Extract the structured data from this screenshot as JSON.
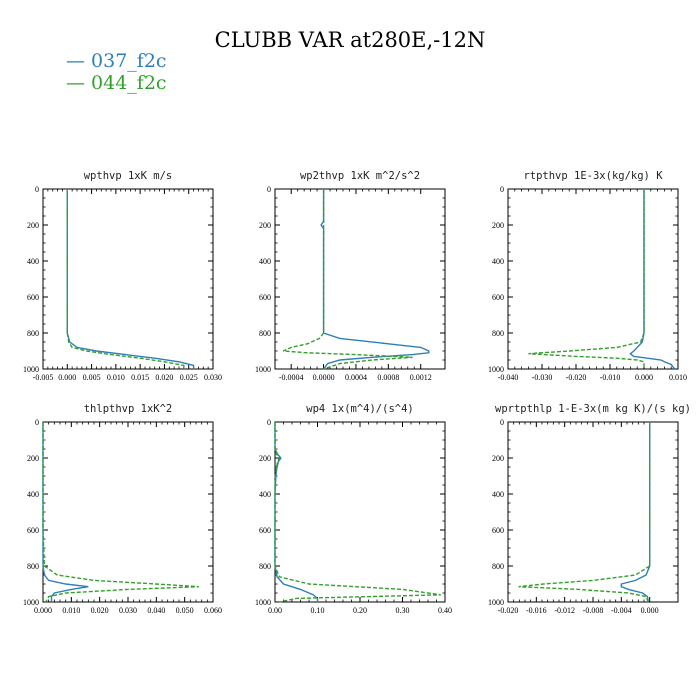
{
  "title": "CLUBB VAR at280E,-12N",
  "legend": [
    {
      "label": "— 037_f2c",
      "color": "#2d7fb8"
    },
    {
      "label": "— 044_f2c",
      "color": "#33a02c"
    }
  ],
  "chart_data": [
    {
      "type": "line",
      "title": "wpthvp  1xK m/s",
      "xlim": [
        -0.005,
        0.03
      ],
      "xticks": [
        "-0.005",
        "0.000",
        "0.005",
        "0.010",
        "0.015",
        "0.020",
        "0.025",
        "0.030"
      ],
      "ylim": [
        1000,
        0
      ],
      "yticks": [
        "0",
        "200",
        "400",
        "600",
        "800",
        "1000"
      ],
      "y": [
        0,
        200,
        400,
        600,
        800,
        850,
        880,
        900,
        920,
        940,
        960,
        980,
        1000
      ],
      "series": [
        {
          "name": "037_f2c",
          "x": [
            0,
            0,
            0,
            0,
            0,
            0.0005,
            0.002,
            0.006,
            0.012,
            0.018,
            0.023,
            0.026,
            0.026
          ]
        },
        {
          "name": "044_f2c",
          "x": [
            0,
            0,
            0,
            0,
            0,
            0.0003,
            0.001,
            0.004,
            0.009,
            0.015,
            0.02,
            0.024,
            0.024
          ]
        }
      ]
    },
    {
      "type": "line",
      "title": "wp2thvp  1xK m^2/s^2",
      "xlim": [
        -0.0006,
        0.0015
      ],
      "xticks": [
        "-0.0004",
        "0.0000",
        "0.0004",
        "0.0008",
        "0.0012"
      ],
      "ylim": [
        1000,
        0
      ],
      "yticks": [
        "0",
        "200",
        "400",
        "600",
        "800",
        "1000"
      ],
      "y": [
        0,
        180,
        200,
        220,
        400,
        600,
        800,
        830,
        860,
        880,
        900,
        910,
        920,
        935,
        950,
        970,
        1000
      ],
      "series": [
        {
          "name": "037_f2c",
          "x": [
            0,
            0,
            -3e-05,
            0,
            0,
            0,
            0,
            0.0002,
            0.0008,
            0.0012,
            0.0013,
            0.0013,
            0.0011,
            0.0006,
            0.0002,
            5e-05,
            0
          ]
        },
        {
          "name": "044_f2c",
          "x": [
            0,
            0,
            0,
            0,
            0,
            0,
            0,
            -5e-05,
            -0.0002,
            -0.0004,
            -0.0005,
            -0.0002,
            0.0004,
            0.0011,
            0.0006,
            0.0002,
            0
          ]
        }
      ]
    },
    {
      "type": "line",
      "title": "rtpthvp  1E-3x(kg/kg) K",
      "xlim": [
        -0.04,
        0.01
      ],
      "xticks": [
        "-0.040",
        "-0.030",
        "-0.020",
        "-0.010",
        "0.000",
        "0.010"
      ],
      "ylim": [
        1000,
        0
      ],
      "yticks": [
        "0",
        "200",
        "400",
        "600",
        "800",
        "1000"
      ],
      "y": [
        0,
        200,
        400,
        600,
        800,
        850,
        880,
        900,
        915,
        930,
        940,
        950,
        960,
        975,
        1000
      ],
      "series": [
        {
          "name": "037_f2c",
          "x": [
            0,
            0,
            0,
            0,
            0,
            -0.0005,
            -0.002,
            -0.003,
            -0.004,
            -0.003,
            0.001,
            0.005,
            0.006,
            0.008,
            0.009
          ]
        },
        {
          "name": "044_f2c",
          "x": [
            0,
            0,
            0,
            0,
            0,
            -0.001,
            -0.008,
            -0.022,
            -0.034,
            -0.02,
            -0.008,
            -0.002,
            0,
            0,
            0
          ]
        }
      ]
    },
    {
      "type": "line",
      "title": "thlpthvp  1xK^2",
      "xlim": [
        0,
        0.06
      ],
      "xticks": [
        "0.000",
        "0.010",
        "0.020",
        "0.030",
        "0.040",
        "0.050",
        "0.060"
      ],
      "ylim": [
        1000,
        0
      ],
      "yticks": [
        "0",
        "200",
        "400",
        "600",
        "800",
        "1000"
      ],
      "y": [
        0,
        200,
        400,
        600,
        800,
        850,
        880,
        900,
        915,
        930,
        950,
        970,
        1000
      ],
      "series": [
        {
          "name": "037_f2c",
          "x": [
            0,
            0,
            0,
            0,
            0,
            0.0005,
            0.002,
            0.008,
            0.016,
            0.01,
            0.004,
            0.003,
            0.003
          ]
        },
        {
          "name": "044_f2c",
          "x": [
            0,
            0,
            0,
            0,
            0.0005,
            0.005,
            0.018,
            0.04,
            0.055,
            0.03,
            0.008,
            0.002,
            0.001
          ]
        }
      ]
    },
    {
      "type": "line",
      "title": "wp4  1x(m^4)/(s^4)",
      "xlim": [
        0,
        0.4
      ],
      "xticks": [
        "0.00",
        "0.10",
        "0.20",
        "0.30",
        "0.40"
      ],
      "ylim": [
        1000,
        0
      ],
      "yticks": [
        "0",
        "200",
        "400",
        "600",
        "800",
        "1000"
      ],
      "y": [
        0,
        150,
        180,
        200,
        220,
        260,
        300,
        350,
        400,
        600,
        800,
        860,
        900,
        930,
        960,
        980,
        1000
      ],
      "series": [
        {
          "name": "037_f2c",
          "x": [
            0,
            0,
            0.006,
            0.014,
            0.008,
            0.004,
            0.002,
            0.001,
            0,
            0,
            0,
            0.005,
            0.02,
            0.06,
            0.09,
            0.1,
            0.1
          ]
        },
        {
          "name": "044_f2c",
          "x": [
            0,
            0,
            0.004,
            0.01,
            0.006,
            0.003,
            0.001,
            0,
            0,
            0,
            0,
            0.01,
            0.08,
            0.3,
            0.39,
            0.05,
            0.01
          ]
        }
      ]
    },
    {
      "type": "line",
      "title": "wprtpthlp  1-E-3x(m kg K)/(s kg)",
      "xlim": [
        -0.02,
        0.004
      ],
      "xticks": [
        "-0.020",
        "-0.016",
        "-0.012",
        "-0.008",
        "-0.004",
        "0.000"
      ],
      "ylim": [
        1000,
        0
      ],
      "yticks": [
        "0",
        "200",
        "400",
        "600",
        "800",
        "1000"
      ],
      "y": [
        0,
        200,
        400,
        600,
        800,
        850,
        880,
        900,
        915,
        930,
        950,
        970,
        1000
      ],
      "series": [
        {
          "name": "037_f2c",
          "x": [
            0,
            0,
            0,
            0,
            0,
            -0.0005,
            -0.002,
            -0.004,
            -0.004,
            -0.003,
            -0.001,
            -0.0003,
            -0.0002
          ]
        },
        {
          "name": "044_f2c",
          "x": [
            0,
            0,
            0,
            0,
            0,
            -0.002,
            -0.008,
            -0.015,
            -0.0185,
            -0.01,
            -0.003,
            -0.0005,
            -0.0002
          ]
        }
      ]
    }
  ]
}
